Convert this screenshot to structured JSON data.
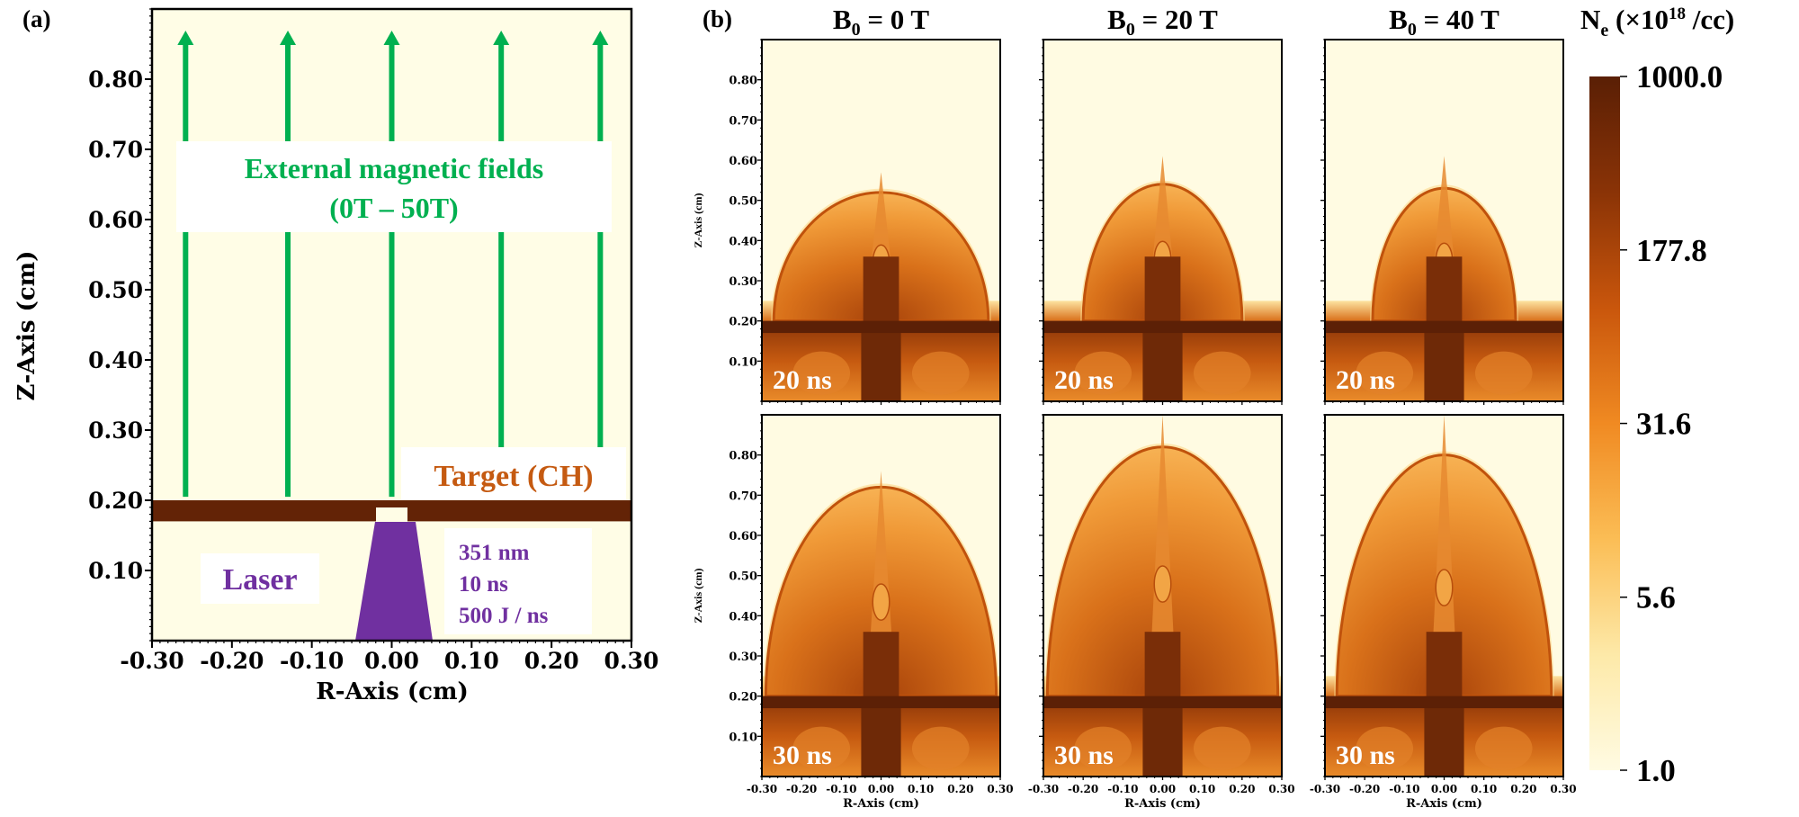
{
  "chart_data": {
    "type": "heatmap",
    "panel_a": {
      "panel_label": "(a)",
      "title": "",
      "xlabel": "R-Axis (cm)",
      "ylabel": "Z-Axis (cm)",
      "xlim": [
        -0.3,
        0.3
      ],
      "ylim": [
        0.0,
        0.9
      ],
      "xticks": [
        "-0.30",
        "-0.20",
        "-0.10",
        "0.00",
        "0.10",
        "0.20",
        "0.30"
      ],
      "yticks": [
        "0.10",
        "0.20",
        "0.30",
        "0.40",
        "0.50",
        "0.60",
        "0.70",
        "0.80"
      ],
      "field_arrows_r": [
        -0.258,
        -0.13,
        0.0,
        0.137,
        0.261
      ],
      "field_label_lines": [
        "External magnetic fields",
        "(0T – 50T)"
      ],
      "target_label": "Target (CH)",
      "target_z_range": [
        0.17,
        0.2
      ],
      "laser_label": "Laser",
      "laser_params": [
        "351 nm",
        "10 ns",
        "500 J / ns"
      ],
      "colors": {
        "background": "#fffde6",
        "field": "#00b050",
        "target": "#632306",
        "target_text": "#c55a11",
        "laser": "#7030a0"
      }
    },
    "panel_b": {
      "panel_label": "(b)",
      "xlabel": "R-Axis (cm)",
      "ylabel": "Z-Axis (cm)",
      "xlim": [
        -0.3,
        0.3
      ],
      "ylim": [
        0.0,
        0.9
      ],
      "xticks": [
        "-0.30",
        "-0.20",
        "-0.10",
        "0.00",
        "0.10",
        "0.20",
        "0.30"
      ],
      "yticks": [
        "0.10",
        "0.20",
        "0.30",
        "0.40",
        "0.50",
        "0.60",
        "0.70",
        "0.80"
      ],
      "columns": [
        {
          "symbol": "B",
          "subscript": "0",
          "rest": " = 0 T",
          "field_T": 0
        },
        {
          "symbol": "B",
          "subscript": "0",
          "rest": " = 20 T",
          "field_T": 20
        },
        {
          "symbol": "B",
          "subscript": "0",
          "rest": " = 40 T",
          "field_T": 40
        }
      ],
      "rows": [
        {
          "time_label": "20 ns",
          "time_ns": 20
        },
        {
          "time_label": "30 ns",
          "time_ns": 30
        }
      ]
    },
    "colorbar": {
      "title_symbol": "N",
      "title_subscript": "e",
      "title_mid": " (×10",
      "title_superscript": "18",
      "title_end": " /cc)",
      "scale": "log",
      "range": [
        1.0,
        1000.0
      ],
      "tick_values": [
        1000.0,
        177.8,
        31.6,
        5.6,
        1.0
      ],
      "tick_labels": [
        "1000.0",
        "177.8",
        "31.6",
        "5.6",
        "1.0"
      ],
      "colors": [
        "#fffbe2",
        "#fde9a8",
        "#fbbd55",
        "#f08a22",
        "#c9560c",
        "#8a3306",
        "#5a1f05"
      ]
    }
  }
}
